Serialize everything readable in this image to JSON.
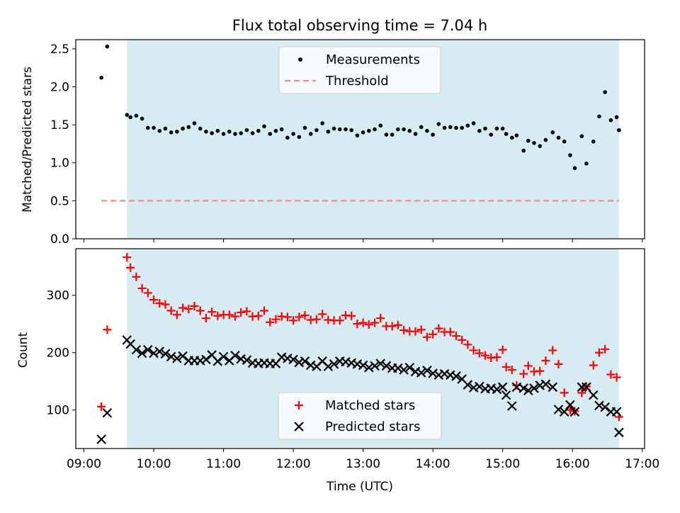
{
  "chart_data": [
    {
      "type": "scatter",
      "title": "Flux total observing time = 7.04 h",
      "xlabel": "",
      "ylabel": "Matched/Predicted stars",
      "ylim": [
        0,
        2.62
      ],
      "xlim": [
        "08:53",
        "17:02"
      ],
      "yticks": [
        "0.0",
        "0.5",
        "1.0",
        "1.5",
        "2.0",
        "2.5"
      ],
      "ytick_values": [
        0,
        0.5,
        1.0,
        1.5,
        2.0,
        2.5
      ],
      "observing_window": [
        "09:37",
        "16:40"
      ],
      "legend": {
        "placement": "top-center",
        "entries": [
          "Measurements",
          "Threshold"
        ]
      },
      "threshold": {
        "value": 0.5,
        "x_range": [
          "09:15",
          "16:40"
        ],
        "color": "#ff7f7f"
      },
      "series": [
        {
          "name": "Measurements",
          "color": "#000000",
          "x": [
            "09:15",
            "09:20",
            "09:37",
            "09:40",
            "09:45",
            "09:50",
            "09:55",
            "10:00",
            "10:05",
            "10:10",
            "10:15",
            "10:20",
            "10:25",
            "10:30",
            "10:35",
            "10:40",
            "10:45",
            "10:50",
            "10:55",
            "11:00",
            "11:05",
            "11:10",
            "11:15",
            "11:20",
            "11:25",
            "11:30",
            "11:35",
            "11:40",
            "11:45",
            "11:50",
            "11:55",
            "12:00",
            "12:05",
            "12:10",
            "12:15",
            "12:20",
            "12:25",
            "12:30",
            "12:35",
            "12:40",
            "12:45",
            "12:50",
            "12:55",
            "13:00",
            "13:05",
            "13:10",
            "13:15",
            "13:20",
            "13:25",
            "13:30",
            "13:35",
            "13:40",
            "13:45",
            "13:50",
            "13:55",
            "14:00",
            "14:05",
            "14:10",
            "14:15",
            "14:20",
            "14:25",
            "14:30",
            "14:35",
            "14:40",
            "14:45",
            "14:50",
            "14:55",
            "15:00",
            "15:03",
            "15:08",
            "15:12",
            "15:18",
            "15:22",
            "15:27",
            "15:32",
            "15:37",
            "15:43",
            "15:48",
            "15:53",
            "15:58",
            "16:02",
            "16:08",
            "16:12",
            "16:18",
            "16:23",
            "16:28",
            "16:33",
            "16:38",
            "16:40"
          ],
          "values": [
            2.12,
            2.53,
            1.63,
            1.6,
            1.62,
            1.58,
            1.46,
            1.46,
            1.42,
            1.45,
            1.4,
            1.41,
            1.45,
            1.47,
            1.52,
            1.45,
            1.41,
            1.39,
            1.42,
            1.38,
            1.41,
            1.38,
            1.39,
            1.43,
            1.39,
            1.42,
            1.48,
            1.38,
            1.42,
            1.44,
            1.33,
            1.38,
            1.34,
            1.46,
            1.38,
            1.43,
            1.52,
            1.41,
            1.45,
            1.44,
            1.44,
            1.43,
            1.36,
            1.4,
            1.42,
            1.44,
            1.49,
            1.37,
            1.37,
            1.44,
            1.44,
            1.42,
            1.38,
            1.47,
            1.42,
            1.37,
            1.51,
            1.46,
            1.47,
            1.46,
            1.46,
            1.49,
            1.52,
            1.42,
            1.45,
            1.37,
            1.45,
            1.45,
            1.38,
            1.33,
            1.36,
            1.16,
            1.29,
            1.26,
            1.22,
            1.3,
            1.4,
            1.33,
            1.28,
            1.1,
            0.93,
            1.35,
            0.99,
            1.28,
            1.61,
            1.93,
            1.56,
            1.6,
            1.43
          ]
        }
      ]
    },
    {
      "type": "scatter",
      "title": "",
      "xlabel": "Time (UTC)",
      "ylabel": "Count",
      "ylim": [
        33,
        381
      ],
      "xlim": [
        "08:53",
        "17:02"
      ],
      "yticks": [
        "100",
        "200",
        "300"
      ],
      "ytick_values": [
        100,
        200,
        300
      ],
      "xticks": [
        "09:00",
        "10:00",
        "11:00",
        "12:00",
        "13:00",
        "14:00",
        "15:00",
        "16:00",
        "17:00"
      ],
      "observing_window": [
        "09:37",
        "16:40"
      ],
      "legend": {
        "placement": "bottom-center",
        "entries": [
          "Matched stars",
          "Predicted stars"
        ]
      },
      "series": [
        {
          "name": "Matched stars",
          "marker": "+",
          "color": "#ff0000",
          "x": [
            "09:15",
            "09:20",
            "09:37",
            "09:40",
            "09:45",
            "09:50",
            "09:55",
            "10:00",
            "10:05",
            "10:10",
            "10:15",
            "10:20",
            "10:25",
            "10:30",
            "10:35",
            "10:40",
            "10:45",
            "10:50",
            "10:55",
            "11:00",
            "11:05",
            "11:10",
            "11:15",
            "11:20",
            "11:25",
            "11:30",
            "11:35",
            "11:40",
            "11:45",
            "11:50",
            "11:55",
            "12:00",
            "12:05",
            "12:10",
            "12:15",
            "12:20",
            "12:25",
            "12:30",
            "12:35",
            "12:40",
            "12:45",
            "12:50",
            "12:55",
            "13:00",
            "13:05",
            "13:10",
            "13:15",
            "13:20",
            "13:25",
            "13:30",
            "13:35",
            "13:40",
            "13:45",
            "13:50",
            "13:55",
            "14:00",
            "14:05",
            "14:10",
            "14:15",
            "14:20",
            "14:25",
            "14:30",
            "14:35",
            "14:40",
            "14:45",
            "14:50",
            "14:55",
            "15:00",
            "15:03",
            "15:08",
            "15:12",
            "15:18",
            "15:22",
            "15:27",
            "15:32",
            "15:37",
            "15:43",
            "15:48",
            "15:53",
            "15:58",
            "16:02",
            "16:08",
            "16:12",
            "16:18",
            "16:23",
            "16:28",
            "16:33",
            "16:38",
            "16:40"
          ],
          "values": [
            106,
            240,
            366,
            348,
            332,
            312,
            304,
            292,
            286,
            284,
            273,
            266,
            278,
            276,
            281,
            273,
            260,
            271,
            264,
            266,
            266,
            263,
            270,
            272,
            263,
            264,
            273,
            253,
            258,
            263,
            262,
            256,
            262,
            265,
            257,
            258,
            267,
            257,
            256,
            256,
            265,
            264,
            250,
            252,
            249,
            252,
            260,
            246,
            246,
            248,
            239,
            237,
            237,
            240,
            227,
            232,
            242,
            236,
            236,
            229,
            222,
            214,
            204,
            199,
            195,
            191,
            192,
            205,
            175,
            170,
            143,
            163,
            177,
            167,
            168,
            186,
            204,
            180,
            130,
            100,
            98,
            130,
            141,
            178,
            200,
            206,
            162,
            157,
            88
          ]
        },
        {
          "name": "Predicted stars",
          "marker": "x",
          "color": "#000000",
          "x": [
            "09:15",
            "09:20",
            "09:37",
            "09:40",
            "09:45",
            "09:50",
            "09:55",
            "10:00",
            "10:05",
            "10:10",
            "10:15",
            "10:20",
            "10:25",
            "10:30",
            "10:35",
            "10:40",
            "10:45",
            "10:50",
            "10:55",
            "11:00",
            "11:05",
            "11:10",
            "11:15",
            "11:20",
            "11:25",
            "11:30",
            "11:35",
            "11:40",
            "11:45",
            "11:50",
            "11:55",
            "12:00",
            "12:05",
            "12:10",
            "12:15",
            "12:20",
            "12:25",
            "12:30",
            "12:35",
            "12:40",
            "12:45",
            "12:50",
            "12:55",
            "13:00",
            "13:05",
            "13:10",
            "13:15",
            "13:20",
            "13:25",
            "13:30",
            "13:35",
            "13:40",
            "13:45",
            "13:50",
            "13:55",
            "14:00",
            "14:05",
            "14:10",
            "14:15",
            "14:20",
            "14:25",
            "14:30",
            "14:35",
            "14:40",
            "14:45",
            "14:50",
            "14:55",
            "15:00",
            "15:03",
            "15:08",
            "15:12",
            "15:18",
            "15:22",
            "15:27",
            "15:32",
            "15:37",
            "15:43",
            "15:48",
            "15:53",
            "15:58",
            "16:02",
            "16:08",
            "16:12",
            "16:18",
            "16:23",
            "16:28",
            "16:33",
            "16:38",
            "16:40"
          ],
          "values": [
            49,
            95,
            222,
            215,
            205,
            199,
            205,
            199,
            202,
            198,
            193,
            190,
            194,
            186,
            186,
            186,
            188,
            196,
            185,
            193,
            186,
            195,
            189,
            187,
            182,
            181,
            182,
            181,
            181,
            192,
            190,
            188,
            183,
            185,
            178,
            176,
            185,
            176,
            180,
            185,
            184,
            182,
            180,
            178,
            174,
            177,
            181,
            177,
            173,
            173,
            170,
            174,
            167,
            165,
            169,
            164,
            161,
            163,
            161,
            159,
            154,
            144,
            139,
            141,
            137,
            138,
            136,
            140,
            126,
            107,
            140,
            138,
            134,
            138,
            143,
            145,
            140,
            101,
            97,
            109,
            97,
            140,
            140,
            126,
            108,
            105,
            97,
            97,
            61
          ]
        }
      ]
    }
  ]
}
